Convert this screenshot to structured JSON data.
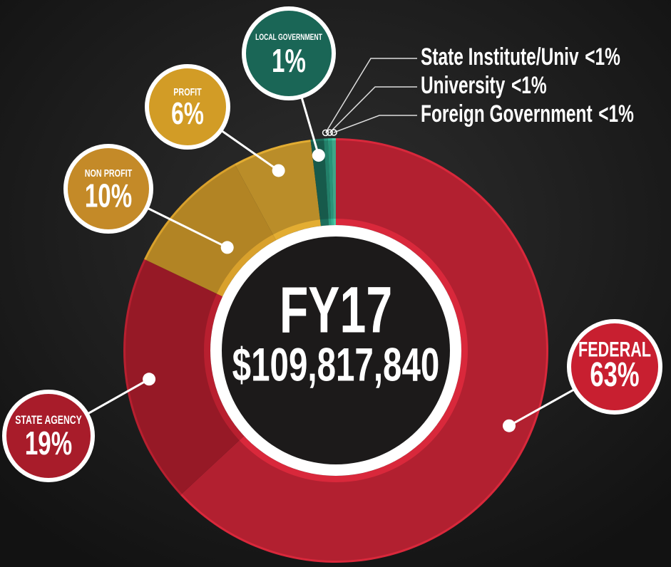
{
  "chart_data": {
    "type": "pie",
    "title": "FY17",
    "subtitle": "$109,817,840",
    "categories": [
      "FEDERAL",
      "STATE AGENCY",
      "NON PROFIT",
      "PROFIT",
      "LOCAL GOVERNMENT",
      "State Institute/Univ",
      "University",
      "Foreign Government"
    ],
    "values": [
      63,
      19,
      10,
      6,
      1,
      0.3,
      0.3,
      0.3
    ],
    "value_labels": [
      "63%",
      "19%",
      "10%",
      "6%",
      "1%",
      "<1%",
      "<1%",
      "<1%"
    ],
    "colors": [
      "#d9283b",
      "#b81f2f",
      "#d9a12c",
      "#e3ad32",
      "#1d6e5c",
      "#2a9c80",
      "#33b594",
      "#4ccaa6"
    ]
  }
}
